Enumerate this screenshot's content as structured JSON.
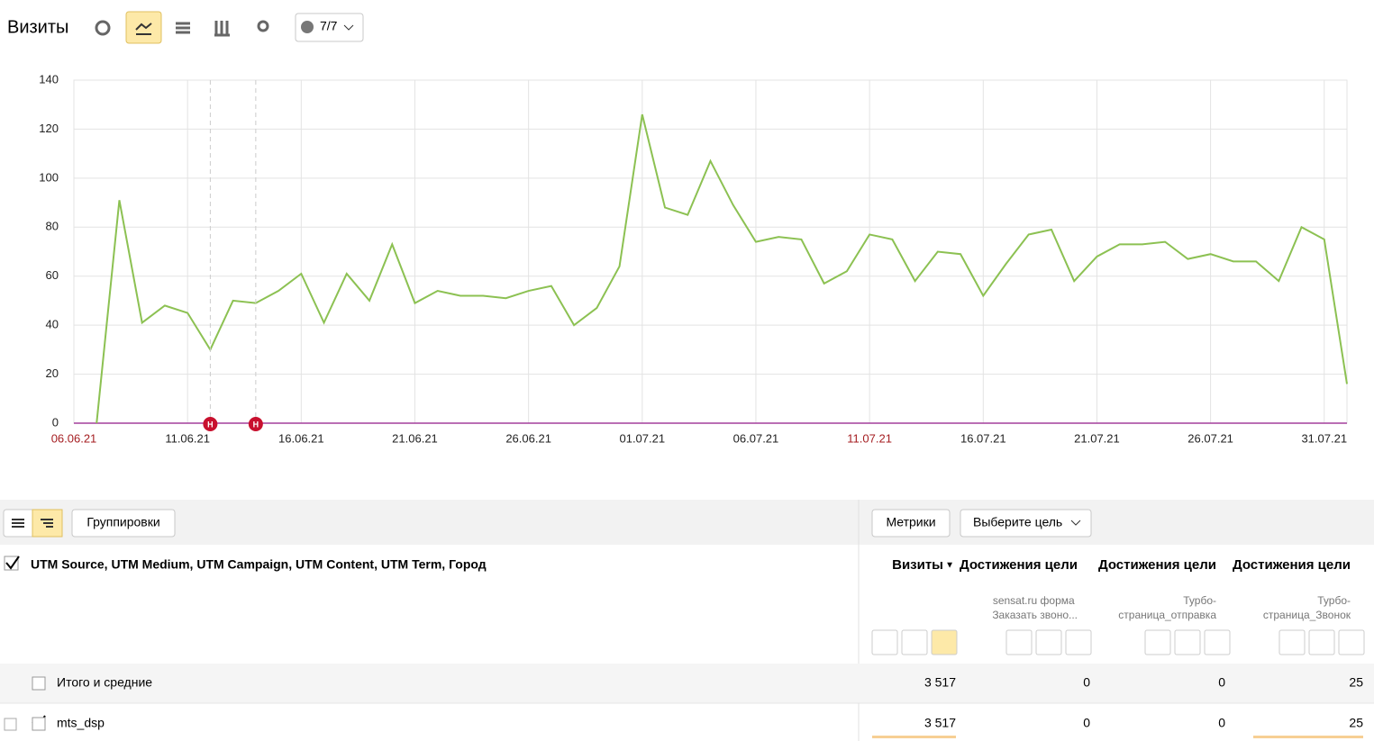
{
  "header": {
    "title": "Визиты",
    "notes_button": "7/7"
  },
  "chart_data": {
    "type": "line",
    "x": [
      "07.06.21",
      "08.06.21",
      "09.06.21",
      "10.06.21",
      "11.06.21",
      "12.06.21",
      "13.06.21",
      "14.06.21",
      "15.06.21",
      "16.06.21",
      "17.06.21",
      "18.06.21",
      "19.06.21",
      "20.06.21",
      "21.06.21",
      "22.06.21",
      "23.06.21",
      "24.06.21",
      "25.06.21",
      "26.06.21",
      "27.06.21",
      "28.06.21",
      "29.06.21",
      "30.06.21",
      "01.07.21",
      "02.07.21",
      "03.07.21",
      "04.07.21",
      "05.07.21",
      "06.07.21",
      "07.07.21",
      "08.07.21",
      "09.07.21",
      "10.07.21",
      "11.07.21",
      "12.07.21",
      "13.07.21",
      "14.07.21",
      "15.07.21",
      "16.07.21",
      "17.07.21",
      "18.07.21",
      "19.07.21",
      "20.07.21",
      "21.07.21",
      "22.07.21",
      "23.07.21",
      "24.07.21",
      "25.07.21",
      "26.07.21",
      "27.07.21",
      "28.07.21",
      "29.07.21",
      "30.07.21",
      "31.07.21",
      "01.08.21"
    ],
    "series": [
      {
        "name": "Визиты",
        "color": "#8cc152",
        "values": [
          0,
          91,
          41,
          48,
          45,
          30,
          50,
          49,
          54,
          61,
          41,
          61,
          50,
          73,
          49,
          54,
          52,
          52,
          51,
          54,
          56,
          40,
          47,
          64,
          126,
          88,
          85,
          107,
          89,
          74,
          76,
          75,
          57,
          62,
          77,
          75,
          58,
          70,
          69,
          52,
          65,
          77,
          79,
          58,
          68,
          73,
          73,
          74,
          67,
          69,
          66,
          66,
          58,
          80,
          75,
          16
        ]
      }
    ],
    "xlim": [
      "06.06.21",
      "01.08.21"
    ],
    "xticks": [
      "06.06.21",
      "11.06.21",
      "16.06.21",
      "21.06.21",
      "26.06.21",
      "01.07.21",
      "06.07.21",
      "11.07.21",
      "16.07.21",
      "21.07.21",
      "26.07.21",
      "31.07.21"
    ],
    "ylim": [
      0,
      140
    ],
    "yticks": [
      0,
      20,
      40,
      60,
      80,
      100,
      120,
      140
    ],
    "grid": true,
    "annotations": [
      {
        "x": "12.06.21",
        "text": "Н"
      },
      {
        "x": "14.06.21",
        "text": "Н"
      }
    ]
  },
  "toolbar": {
    "groupings": "Группировки",
    "metrics": "Метрики",
    "goal_select": "Выберите цель"
  },
  "table": {
    "dimension_header": "UTM Source, UTM Medium, UTM Campaign, UTM Content, UTM Term, Город",
    "columns": [
      {
        "title": "Визиты",
        "subtitle": null
      },
      {
        "title": "Достижения цели",
        "subtitle": "sensat.ru форма Заказать звоно..."
      },
      {
        "title": "Достижения цели",
        "subtitle": "Турбо-страница_отправка"
      },
      {
        "title": "Достижения цели",
        "subtitle": "Турбо-страница_Звонок"
      }
    ],
    "rows": [
      [
        "Итого и средние",
        "3 517",
        "0",
        "0",
        "25"
      ],
      [
        "mts_dsp",
        "3 517",
        "0",
        "0",
        "25"
      ]
    ]
  }
}
